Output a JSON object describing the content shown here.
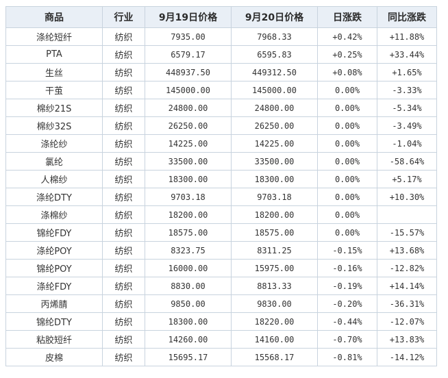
{
  "table": {
    "headers": [
      "商品",
      "行业",
      "9月19日价格",
      "9月20日价格",
      "日涨跌",
      "同比涨跌"
    ],
    "rows": [
      {
        "product": "涤纶短纤",
        "link": true,
        "industry": "纺织",
        "p19": "7935.00",
        "p20": "7968.33",
        "daily": "+0.42%",
        "yoy": "+11.88%"
      },
      {
        "product": "PTA",
        "link": false,
        "industry": "纺织",
        "p19": "6579.17",
        "p20": "6595.83",
        "daily": "+0.25%",
        "yoy": "+33.44%"
      },
      {
        "product": "生丝",
        "link": false,
        "industry": "纺织",
        "p19": "448937.50",
        "p20": "449312.50",
        "daily": "+0.08%",
        "yoy": "+1.65%"
      },
      {
        "product": "干茧",
        "link": true,
        "industry": "纺织",
        "p19": "145000.00",
        "p20": "145000.00",
        "daily": "0.00%",
        "yoy": "-3.33%"
      },
      {
        "product": "棉纱21S",
        "link": true,
        "industry": "纺织",
        "p19": "24800.00",
        "p20": "24800.00",
        "daily": "0.00%",
        "yoy": "-5.34%"
      },
      {
        "product": "棉纱32S",
        "link": false,
        "industry": "纺织",
        "p19": "26250.00",
        "p20": "26250.00",
        "daily": "0.00%",
        "yoy": "-3.49%"
      },
      {
        "product": "涤纶纱",
        "link": true,
        "industry": "纺织",
        "p19": "14225.00",
        "p20": "14225.00",
        "daily": "0.00%",
        "yoy": "-1.04%"
      },
      {
        "product": "氯纶",
        "link": true,
        "industry": "纺织",
        "p19": "33500.00",
        "p20": "33500.00",
        "daily": "0.00%",
        "yoy": "-58.64%"
      },
      {
        "product": "人棉纱",
        "link": true,
        "industry": "纺织",
        "p19": "18300.00",
        "p20": "18300.00",
        "daily": "0.00%",
        "yoy": "+5.17%"
      },
      {
        "product": "涤纶DTY",
        "link": true,
        "industry": "纺织",
        "p19": "9703.18",
        "p20": "9703.18",
        "daily": "0.00%",
        "yoy": "+10.30%"
      },
      {
        "product": "涤棉纱",
        "link": false,
        "industry": "纺织",
        "p19": "18200.00",
        "p20": "18200.00",
        "daily": "0.00%",
        "yoy": ""
      },
      {
        "product": "锦纶FDY",
        "link": true,
        "industry": "纺织",
        "p19": "18575.00",
        "p20": "18575.00",
        "daily": "0.00%",
        "yoy": "-15.57%"
      },
      {
        "product": "涤纶POY",
        "link": true,
        "industry": "纺织",
        "p19": "8323.75",
        "p20": "8311.25",
        "daily": "-0.15%",
        "yoy": "+13.68%"
      },
      {
        "product": "锦纶POY",
        "link": true,
        "industry": "纺织",
        "p19": "16000.00",
        "p20": "15975.00",
        "daily": "-0.16%",
        "yoy": "-12.82%"
      },
      {
        "product": "涤纶FDY",
        "link": true,
        "industry": "纺织",
        "p19": "8830.00",
        "p20": "8813.33",
        "daily": "-0.19%",
        "yoy": "+14.14%"
      },
      {
        "product": "丙烯腈",
        "link": true,
        "industry": "纺织",
        "p19": "9850.00",
        "p20": "9830.00",
        "daily": "-0.20%",
        "yoy": "-36.31%"
      },
      {
        "product": "锦纶DTY",
        "link": true,
        "industry": "纺织",
        "p19": "18300.00",
        "p20": "18220.00",
        "daily": "-0.44%",
        "yoy": "-12.07%"
      },
      {
        "product": "粘胶短纤",
        "link": true,
        "industry": "纺织",
        "p19": "14260.00",
        "p20": "14160.00",
        "daily": "-0.70%",
        "yoy": "+13.83%"
      },
      {
        "product": "皮棉",
        "link": false,
        "industry": "纺织",
        "p19": "15695.17",
        "p20": "15568.17",
        "daily": "-0.81%",
        "yoy": "-14.12%"
      }
    ]
  },
  "colors": {
    "up": "#e0242a",
    "down": "#2c8b2c",
    "link": "#d9822b",
    "header_bg": "#e9eff6",
    "border": "#c8d3de"
  }
}
